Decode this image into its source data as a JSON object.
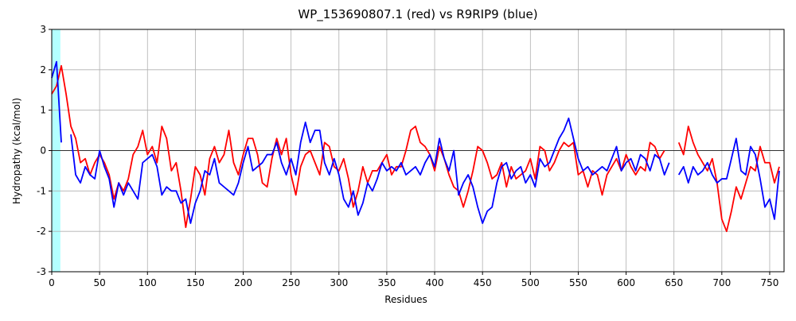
{
  "chart_data": {
    "type": "line",
    "title": "WP_153690807.1 (red) vs R9RIP9 (blue)",
    "x_label": "Residues",
    "y_label": "Hydropathy (kcal/mol)",
    "xlim": [
      0,
      765
    ],
    "ylim": [
      -3,
      3
    ],
    "xticks": [
      0,
      50,
      100,
      150,
      200,
      250,
      300,
      350,
      400,
      450,
      500,
      550,
      600,
      650,
      700,
      750
    ],
    "yticks": [
      -3,
      -2,
      -1,
      0,
      1,
      2,
      3
    ],
    "grid": true,
    "hline": 0,
    "shaded_span": {
      "x": [
        0,
        9
      ],
      "color": "#b3ffff"
    },
    "x": [
      0,
      5,
      10,
      15,
      20,
      25,
      30,
      35,
      40,
      45,
      50,
      55,
      60,
      65,
      70,
      75,
      80,
      85,
      90,
      95,
      100,
      105,
      110,
      115,
      120,
      125,
      130,
      135,
      140,
      145,
      150,
      155,
      160,
      165,
      170,
      175,
      180,
      185,
      190,
      195,
      200,
      205,
      210,
      215,
      220,
      225,
      230,
      235,
      240,
      245,
      250,
      255,
      260,
      265,
      270,
      275,
      280,
      285,
      290,
      295,
      300,
      305,
      310,
      315,
      320,
      325,
      330,
      335,
      340,
      345,
      350,
      355,
      360,
      365,
      370,
      375,
      380,
      385,
      390,
      395,
      400,
      405,
      410,
      415,
      420,
      425,
      430,
      435,
      440,
      445,
      450,
      455,
      460,
      465,
      470,
      475,
      480,
      485,
      490,
      495,
      500,
      505,
      510,
      515,
      520,
      525,
      530,
      535,
      540,
      545,
      550,
      555,
      560,
      565,
      570,
      575,
      580,
      585,
      590,
      595,
      600,
      605,
      610,
      615,
      620,
      625,
      630,
      635,
      640,
      645,
      650,
      655,
      660,
      665,
      670,
      675,
      680,
      685,
      690,
      695,
      700,
      705,
      710,
      715,
      720,
      725,
      730,
      735,
      740,
      745,
      750,
      755,
      760
    ],
    "series": [
      {
        "name": "WP_153690807.1",
        "color": "#ff0000",
        "values": [
          1.4,
          1.6,
          2.1,
          1.4,
          0.6,
          0.3,
          -0.3,
          -0.2,
          -0.6,
          -0.3,
          -0.1,
          -0.3,
          -0.6,
          -1.2,
          -0.8,
          -1.0,
          -0.7,
          -0.1,
          0.1,
          0.5,
          -0.1,
          0.1,
          -0.3,
          0.6,
          0.3,
          -0.5,
          -0.3,
          -1.0,
          -1.9,
          -1.2,
          -0.4,
          -0.6,
          -1.1,
          -0.2,
          0.1,
          -0.3,
          -0.1,
          0.5,
          -0.3,
          -0.6,
          -0.1,
          0.3,
          0.3,
          -0.1,
          -0.8,
          -0.9,
          -0.2,
          0.3,
          -0.1,
          0.3,
          -0.6,
          -1.1,
          -0.4,
          -0.1,
          0.0,
          -0.3,
          -0.6,
          0.2,
          0.1,
          -0.4,
          -0.5,
          -0.2,
          -0.7,
          -1.4,
          -1.0,
          -0.4,
          -0.8,
          -0.5,
          -0.5,
          -0.3,
          -0.1,
          -0.6,
          -0.4,
          -0.4,
          0.0,
          0.5,
          0.6,
          0.2,
          0.1,
          -0.1,
          -0.5,
          0.1,
          -0.2,
          -0.6,
          -0.9,
          -1.0,
          -1.4,
          -1.0,
          -0.5,
          0.1,
          0.0,
          -0.3,
          -0.7,
          -0.6,
          -0.3,
          -0.9,
          -0.4,
          -0.7,
          -0.6,
          -0.5,
          -0.2,
          -0.7,
          0.1,
          0.0,
          -0.5,
          -0.3,
          0.0,
          0.2,
          0.1,
          0.2,
          -0.6,
          -0.5,
          -0.9,
          -0.5,
          -0.6,
          -1.1,
          -0.6,
          -0.4,
          -0.2,
          -0.5,
          -0.1,
          -0.4,
          -0.6,
          -0.4,
          -0.5,
          0.2,
          0.1,
          -0.2,
          0.0,
          null,
          null,
          0.2,
          -0.1,
          0.6,
          0.2,
          -0.1,
          -0.3,
          -0.5,
          -0.2,
          -0.8,
          -1.7,
          -2.0,
          -1.5,
          -0.9,
          -1.2,
          -0.8,
          -0.4,
          -0.5,
          0.1,
          -0.3,
          -0.3,
          -0.8,
          -0.4
        ]
      },
      {
        "name": "R9RIP9",
        "color": "#0000ff",
        "values": [
          1.8,
          2.2,
          0.2,
          null,
          0.4,
          -0.6,
          -0.8,
          -0.4,
          -0.6,
          -0.7,
          0.0,
          -0.4,
          -0.7,
          -1.4,
          -0.8,
          -1.1,
          -0.8,
          -1.0,
          -1.2,
          -0.3,
          -0.2,
          -0.1,
          -0.4,
          -1.1,
          -0.9,
          -1.0,
          -1.0,
          -1.3,
          -1.2,
          -1.8,
          -1.3,
          -1.0,
          -0.5,
          -0.6,
          -0.2,
          -0.8,
          -0.9,
          -1.0,
          -1.1,
          -0.8,
          -0.3,
          0.1,
          -0.5,
          -0.4,
          -0.3,
          -0.1,
          -0.1,
          0.2,
          -0.3,
          -0.6,
          -0.2,
          -0.6,
          0.2,
          0.7,
          0.2,
          0.5,
          0.5,
          -0.3,
          -0.6,
          -0.2,
          -0.6,
          -1.2,
          -1.4,
          -1.0,
          -1.6,
          -1.3,
          -0.8,
          -1.0,
          -0.7,
          -0.3,
          -0.5,
          -0.4,
          -0.5,
          -0.3,
          -0.6,
          -0.5,
          -0.4,
          -0.6,
          -0.3,
          -0.1,
          -0.4,
          0.3,
          -0.2,
          -0.5,
          0.0,
          -1.1,
          -0.8,
          -0.6,
          -0.9,
          -1.4,
          -1.8,
          -1.5,
          -1.4,
          -0.8,
          -0.4,
          -0.3,
          -0.7,
          -0.5,
          -0.4,
          -0.8,
          -0.6,
          -0.9,
          -0.2,
          -0.4,
          -0.3,
          0.0,
          0.3,
          0.5,
          0.8,
          0.3,
          -0.2,
          -0.5,
          -0.4,
          -0.6,
          -0.5,
          -0.4,
          -0.5,
          -0.2,
          0.1,
          -0.5,
          -0.3,
          -0.2,
          -0.5,
          -0.1,
          -0.2,
          -0.5,
          -0.1,
          -0.2,
          -0.6,
          -0.3,
          null,
          -0.6,
          -0.4,
          -0.8,
          -0.4,
          -0.6,
          -0.5,
          -0.3,
          -0.6,
          -0.8,
          -0.7,
          -0.7,
          -0.2,
          0.3,
          -0.5,
          -0.6,
          0.1,
          -0.1,
          -0.7,
          -1.4,
          -1.2,
          -1.7,
          -0.5
        ]
      }
    ]
  }
}
